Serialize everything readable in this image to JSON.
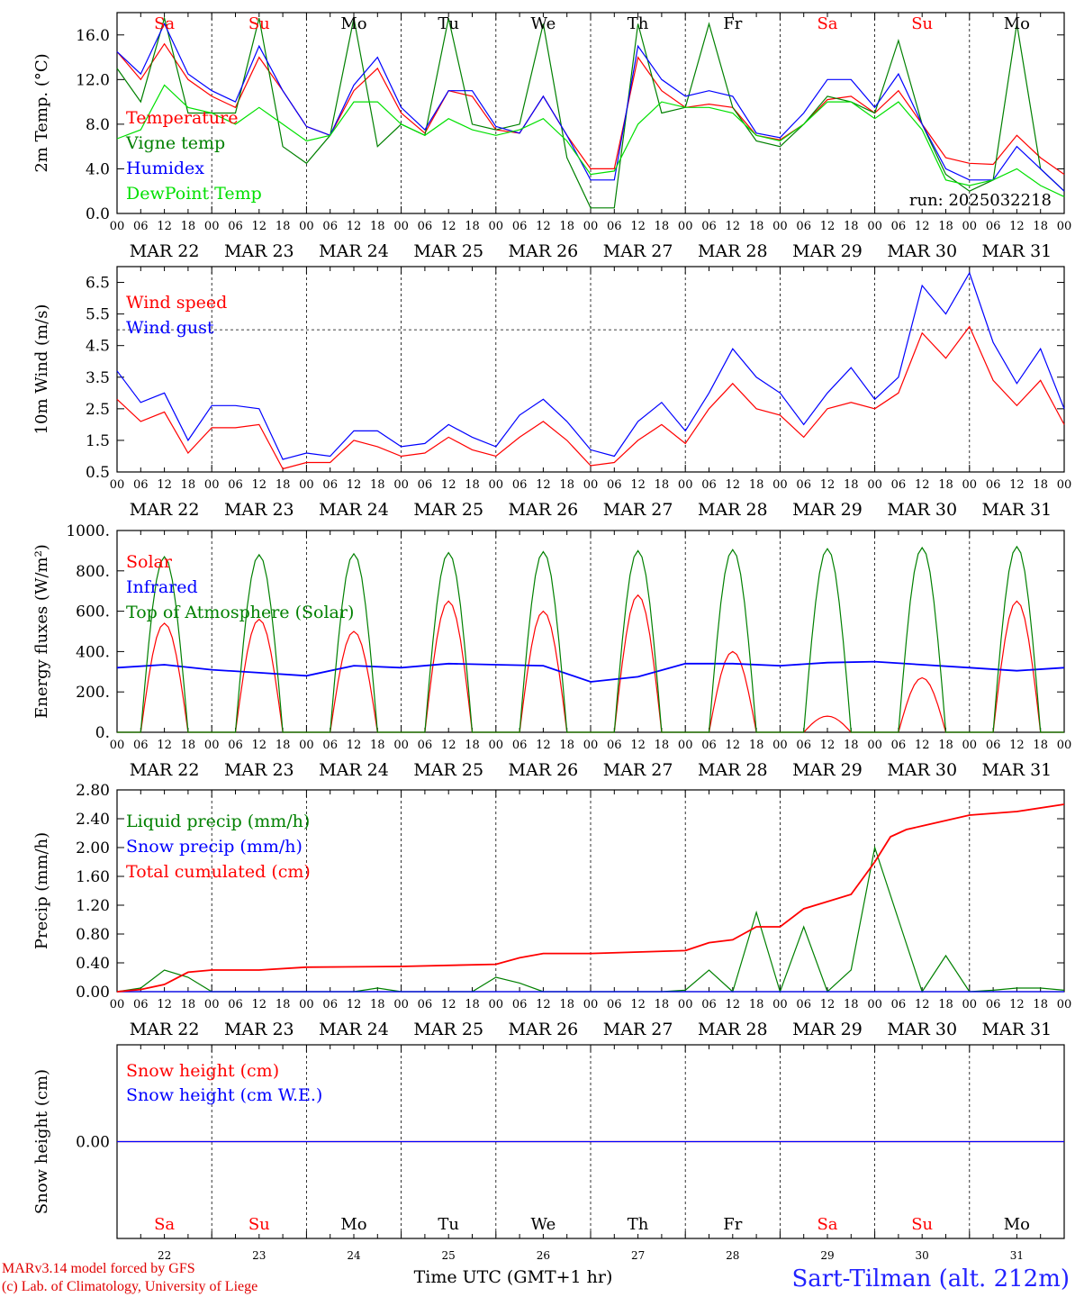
{
  "run_label": "run: 2025032218",
  "day_abbr": [
    "Sa",
    "Su",
    "Mo",
    "Tu",
    "We",
    "Th",
    "Fr",
    "Sa",
    "Su",
    "Mo"
  ],
  "weekend_flags": [
    true,
    true,
    false,
    false,
    false,
    false,
    false,
    true,
    true,
    false
  ],
  "date_labels": [
    "MAR 22",
    "MAR 23",
    "MAR 24",
    "MAR 25",
    "MAR 26",
    "MAR 27",
    "MAR 28",
    "MAR 29",
    "MAR 30",
    "MAR 31"
  ],
  "day_numbers": [
    "22",
    "23",
    "24",
    "25",
    "26",
    "27",
    "28",
    "29",
    "30",
    "31"
  ],
  "hour_ticks": [
    "00",
    "06",
    "12",
    "18"
  ],
  "x_title": "Time UTC (GMT+1 hr)",
  "location": "Sart-Tilman (alt. 212m)",
  "credits": [
    "MARv3.14 model forced by GFS",
    "(c) Lab. of Climatology, University of Liege"
  ],
  "colors": {
    "red": "#ff0000",
    "dark_green": "#008000",
    "blue": "#0000ff",
    "light_green": "#00e000",
    "axis": "#000000"
  },
  "chart_data": [
    {
      "type": "line",
      "ylabel": "2m Temp. (°C)",
      "ylim": [
        0,
        18
      ],
      "yticks": [
        "0.0",
        "4.0",
        "8.0",
        "12.0",
        "16.0"
      ],
      "x_unit": "hours since MAR 22 00 UTC",
      "series": [
        {
          "name": "Temperature",
          "color": "#ff0000",
          "x": [
            0,
            6,
            12,
            18,
            24,
            30,
            36,
            42,
            48,
            54,
            60,
            66,
            72,
            78,
            84,
            90,
            96,
            102,
            108,
            114,
            120,
            126,
            132,
            138,
            144,
            150,
            156,
            162,
            168,
            174,
            180,
            186,
            192,
            198,
            204,
            210,
            216,
            222,
            228,
            234,
            240
          ],
          "y": [
            14.5,
            12,
            15.2,
            12,
            10.5,
            9.5,
            14,
            11,
            7.8,
            7,
            11,
            13,
            9,
            7.2,
            11,
            10.5,
            7.5,
            7.2,
            10.5,
            7,
            4,
            4,
            14,
            11,
            9.5,
            9.8,
            9.5,
            7,
            6.6,
            8,
            10.2,
            10.5,
            9,
            11,
            8,
            5,
            4.5,
            4.4,
            7,
            5,
            3.5
          ]
        },
        {
          "name": "Vigne temp",
          "color": "#008000",
          "x": [
            0,
            6,
            12,
            18,
            24,
            30,
            36,
            42,
            48,
            54,
            60,
            66,
            72,
            78,
            84,
            90,
            96,
            102,
            108,
            114,
            120,
            126,
            132,
            138,
            144,
            150,
            156,
            162,
            168,
            174,
            180,
            186,
            192,
            198,
            204,
            210,
            216,
            222,
            228,
            234,
            240
          ],
          "y": [
            13,
            10,
            17.5,
            9,
            9,
            9,
            17.5,
            6,
            4.5,
            7,
            17.5,
            6,
            8,
            7,
            17.5,
            8,
            7.5,
            8,
            17,
            5,
            0.5,
            0.5,
            17,
            9,
            9.5,
            17,
            9.5,
            6.5,
            6,
            8,
            10.5,
            10,
            9,
            15.5,
            8,
            3.5,
            2,
            3,
            17,
            4,
            2
          ]
        },
        {
          "name": "Humidex",
          "color": "#0000ff",
          "x": [
            0,
            6,
            12,
            18,
            24,
            30,
            36,
            42,
            48,
            54,
            60,
            66,
            72,
            78,
            84,
            90,
            96,
            102,
            108,
            114,
            120,
            126,
            132,
            138,
            144,
            150,
            156,
            162,
            168,
            174,
            180,
            186,
            192,
            198,
            204,
            210,
            216,
            222,
            228,
            234,
            240
          ],
          "y": [
            14.5,
            12.5,
            17,
            12.5,
            11,
            10,
            15,
            11,
            7.8,
            7,
            11.5,
            14,
            9.5,
            7.5,
            11,
            11,
            7.8,
            7.2,
            10.5,
            7,
            3,
            3,
            15,
            12,
            10.5,
            11,
            10.5,
            7.2,
            6.8,
            9,
            12,
            12,
            9.5,
            12.5,
            8,
            4,
            3,
            3,
            6,
            4,
            2
          ]
        },
        {
          "name": "DewPoint Temp",
          "color": "#00e000",
          "x": [
            0,
            6,
            12,
            18,
            24,
            30,
            36,
            42,
            48,
            54,
            60,
            66,
            72,
            78,
            84,
            90,
            96,
            102,
            108,
            114,
            120,
            126,
            132,
            138,
            144,
            150,
            156,
            162,
            168,
            174,
            180,
            186,
            192,
            198,
            204,
            210,
            216,
            222,
            228,
            234,
            240
          ],
          "y": [
            6.7,
            7.5,
            11.5,
            9.5,
            9,
            8,
            9.5,
            8,
            6.5,
            7,
            10,
            10,
            8,
            7,
            8.5,
            7.5,
            7,
            7.5,
            8.5,
            6.5,
            3.5,
            3.8,
            8,
            10,
            9.5,
            9.5,
            9,
            7,
            6.5,
            8,
            10,
            10,
            8.5,
            10,
            7.5,
            3,
            2.5,
            3,
            4,
            2.5,
            1.5
          ]
        }
      ]
    },
    {
      "type": "line",
      "ylabel": "10m Wind (m/s)",
      "ylim": [
        0.5,
        7
      ],
      "yticks": [
        "0.5",
        "1.5",
        "2.5",
        "3.5",
        "4.5",
        "5.5",
        "6.5"
      ],
      "reference_line": 5,
      "series": [
        {
          "name": "Wind speed",
          "color": "#ff0000",
          "x": [
            0,
            6,
            12,
            18,
            24,
            30,
            36,
            42,
            48,
            54,
            60,
            66,
            72,
            78,
            84,
            90,
            96,
            102,
            108,
            114,
            120,
            126,
            132,
            138,
            144,
            150,
            156,
            162,
            168,
            174,
            180,
            186,
            192,
            198,
            204,
            210,
            216,
            222,
            228,
            234,
            240
          ],
          "y": [
            2.8,
            2.1,
            2.4,
            1.1,
            1.9,
            1.9,
            2,
            0.6,
            0.8,
            0.8,
            1.5,
            1.3,
            1,
            1.1,
            1.6,
            1.2,
            1,
            1.6,
            2.1,
            1.5,
            0.7,
            0.8,
            1.5,
            2,
            1.4,
            2.5,
            3.3,
            2.5,
            2.3,
            1.6,
            2.5,
            2.7,
            2.5,
            3,
            4.9,
            4.1,
            5.1,
            3.4,
            2.6,
            3.4,
            2
          ]
        },
        {
          "name": "Wind gust",
          "color": "#0000ff",
          "x": [
            0,
            6,
            12,
            18,
            24,
            30,
            36,
            42,
            48,
            54,
            60,
            66,
            72,
            78,
            84,
            90,
            96,
            102,
            108,
            114,
            120,
            126,
            132,
            138,
            144,
            150,
            156,
            162,
            168,
            174,
            180,
            186,
            192,
            198,
            204,
            210,
            216,
            222,
            228,
            234,
            240
          ],
          "y": [
            3.7,
            2.7,
            3,
            1.5,
            2.6,
            2.6,
            2.5,
            0.9,
            1.1,
            1,
            1.8,
            1.8,
            1.3,
            1.4,
            2,
            1.6,
            1.3,
            2.3,
            2.8,
            2.1,
            1.2,
            1,
            2.1,
            2.7,
            1.8,
            3,
            4.4,
            3.5,
            3,
            2,
            3,
            3.8,
            2.8,
            3.5,
            6.4,
            5.5,
            6.8,
            4.6,
            3.3,
            4.4,
            2.5
          ]
        }
      ]
    },
    {
      "type": "line",
      "ylabel": "Energy fluxes (W/m²)",
      "ylim": [
        0,
        1000
      ],
      "yticks": [
        "0.",
        "200.",
        "400.",
        "600.",
        "800.",
        "1000."
      ],
      "series": [
        {
          "name": "Solar",
          "color": "#ff0000",
          "solar_noon_peaks": [
            540,
            560,
            500,
            650,
            600,
            680,
            400,
            80,
            270,
            650
          ]
        },
        {
          "name": "Infrared",
          "color": "#0000ff",
          "x": [
            0,
            12,
            24,
            36,
            48,
            60,
            72,
            84,
            96,
            108,
            120,
            132,
            144,
            156,
            168,
            180,
            192,
            204,
            216,
            228,
            240
          ],
          "y": [
            320,
            335,
            310,
            295,
            280,
            330,
            320,
            340,
            335,
            330,
            250,
            275,
            340,
            340,
            330,
            345,
            350,
            335,
            320,
            305,
            320
          ]
        },
        {
          "name": "Top of Atmosphere (Solar)",
          "color": "#008000",
          "solar_noon_peaks": [
            870,
            880,
            885,
            890,
            895,
            900,
            905,
            910,
            915,
            920
          ]
        }
      ]
    },
    {
      "type": "line",
      "ylabel": "Precip (mm/h)",
      "ylim": [
        0,
        2.8
      ],
      "yticks": [
        "0.00",
        "0.40",
        "0.80",
        "1.20",
        "1.60",
        "2.00",
        "2.40",
        "2.80"
      ],
      "series": [
        {
          "name": "Liquid precip (mm/h)",
          "color": "#008000",
          "x": [
            0,
            6,
            12,
            18,
            24,
            30,
            36,
            42,
            48,
            54,
            60,
            66,
            72,
            78,
            84,
            90,
            96,
            102,
            108,
            114,
            120,
            126,
            132,
            138,
            144,
            150,
            156,
            162,
            168,
            174,
            180,
            186,
            192,
            198,
            204,
            210,
            216,
            222,
            228,
            234,
            240
          ],
          "y": [
            0,
            0.05,
            0.3,
            0.2,
            0,
            0,
            0,
            0,
            0,
            0,
            0,
            0.05,
            0,
            0,
            0,
            0,
            0.2,
            0.12,
            0,
            0,
            0,
            0,
            0,
            0,
            0.02,
            0.3,
            0,
            1.1,
            0,
            0.9,
            0,
            0.3,
            2,
            1,
            0,
            0.5,
            0,
            0.02,
            0.05,
            0.05,
            0.02
          ]
        },
        {
          "name": "Snow precip (mm/h)",
          "color": "#0000ff",
          "x": [
            0,
            240
          ],
          "y": [
            0,
            0
          ]
        },
        {
          "name": "Total cumulated (cm)",
          "color": "#ff0000",
          "x": [
            0,
            6,
            12,
            18,
            24,
            36,
            48,
            72,
            96,
            102,
            108,
            120,
            144,
            150,
            156,
            162,
            168,
            174,
            180,
            186,
            192,
            196,
            200,
            204,
            216,
            228,
            240
          ],
          "y": [
            0,
            0.03,
            0.1,
            0.27,
            0.3,
            0.3,
            0.34,
            0.35,
            0.38,
            0.47,
            0.53,
            0.53,
            0.57,
            0.68,
            0.72,
            0.9,
            0.9,
            1.15,
            1.25,
            1.35,
            1.8,
            2.15,
            2.25,
            2.3,
            2.45,
            2.5,
            2.6
          ]
        }
      ]
    },
    {
      "type": "line",
      "ylabel": "Snow height (cm)",
      "yticks": [
        "0.00"
      ],
      "series": [
        {
          "name": "Snow height (cm)",
          "color": "#ff0000",
          "x": [
            0,
            240
          ],
          "y": [
            0,
            0
          ]
        },
        {
          "name": "Snow height (cm W.E.)",
          "color": "#0000ff",
          "x": [
            0,
            240
          ],
          "y": [
            0,
            0
          ]
        }
      ]
    }
  ]
}
